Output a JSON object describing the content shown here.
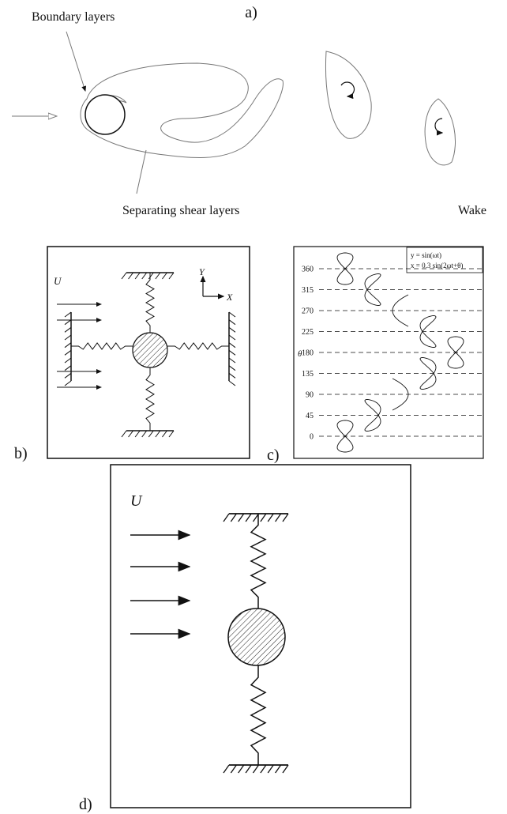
{
  "panel_a": {
    "label": "a)",
    "boundary": "Boundary layers",
    "shear": "Separating shear layers",
    "wake": "Wake"
  },
  "panel_b": {
    "label": "b)",
    "flow": "U",
    "y_axis": "Y",
    "x_axis": "X"
  },
  "panel_c": {
    "label": "c)",
    "axis_label": "θ",
    "yticks": [
      0,
      45,
      90,
      135,
      180,
      225,
      270,
      315,
      360
    ],
    "ylim": [
      0,
      360
    ],
    "eq_y": "y = sin(ωt)",
    "eq_x": "x = 0.3 sin(2ωt+θ)"
  },
  "panel_d": {
    "label": "d)",
    "flow": "U"
  }
}
